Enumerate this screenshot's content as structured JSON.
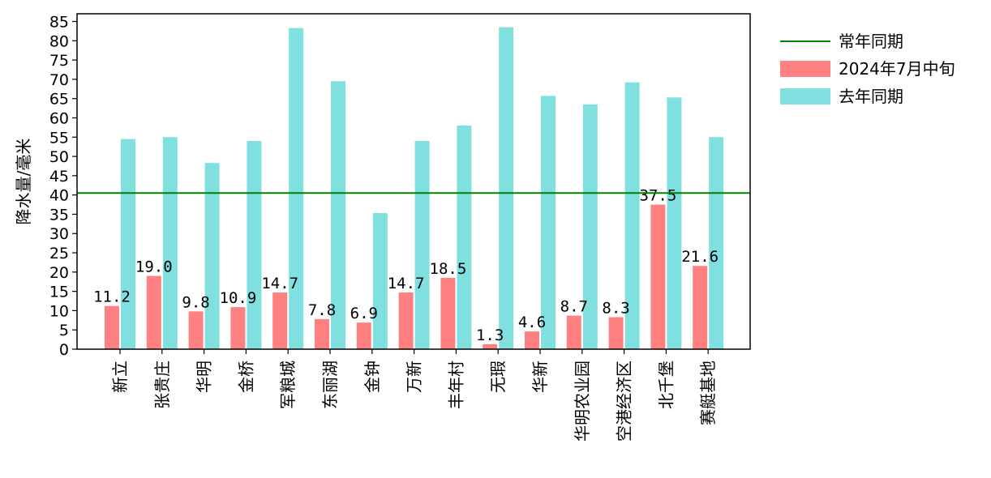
{
  "chart_data": {
    "type": "bar",
    "ylabel": "降水量/毫米",
    "ylim": [
      0,
      87
    ],
    "yticks": [
      0,
      5,
      10,
      15,
      20,
      25,
      30,
      35,
      40,
      45,
      50,
      55,
      60,
      65,
      70,
      75,
      80,
      85
    ],
    "categories": [
      "新立",
      "张贵庄",
      "华明",
      "金桥",
      "军粮城",
      "东丽湖",
      "金钟",
      "万新",
      "丰年村",
      "无瑕",
      "华新",
      "华明农业园",
      "空港经济区",
      "北千堡",
      "赛艇基地"
    ],
    "series": [
      {
        "name": "2024年7月中旬",
        "color": "#ff8080",
        "values": [
          11.2,
          19.0,
          9.8,
          10.9,
          14.7,
          7.8,
          6.9,
          14.7,
          18.5,
          1.3,
          4.6,
          8.7,
          8.3,
          37.5,
          21.6
        ],
        "labels": [
          "11.2",
          "19.0",
          "9.8",
          "10.9",
          "14.7",
          "7.8",
          "6.9",
          "14.7",
          "18.5",
          "1.3",
          "4.6",
          "8.7",
          "8.3",
          "37.5",
          "21.6"
        ]
      },
      {
        "name": "去年同期",
        "color": "#80e0e0",
        "values": [
          54.5,
          55.0,
          48.3,
          54.0,
          83.3,
          69.5,
          35.3,
          54.0,
          58.0,
          83.5,
          65.7,
          63.5,
          69.2,
          65.3,
          55.0
        ]
      }
    ],
    "reference_line": {
      "name": "常年同期",
      "value": 40.5,
      "color": "#008000"
    },
    "legend": {
      "placement": "outside-right",
      "entries": [
        "常年同期",
        "2024年7月中旬",
        "去年同期"
      ]
    },
    "grid": false
  }
}
